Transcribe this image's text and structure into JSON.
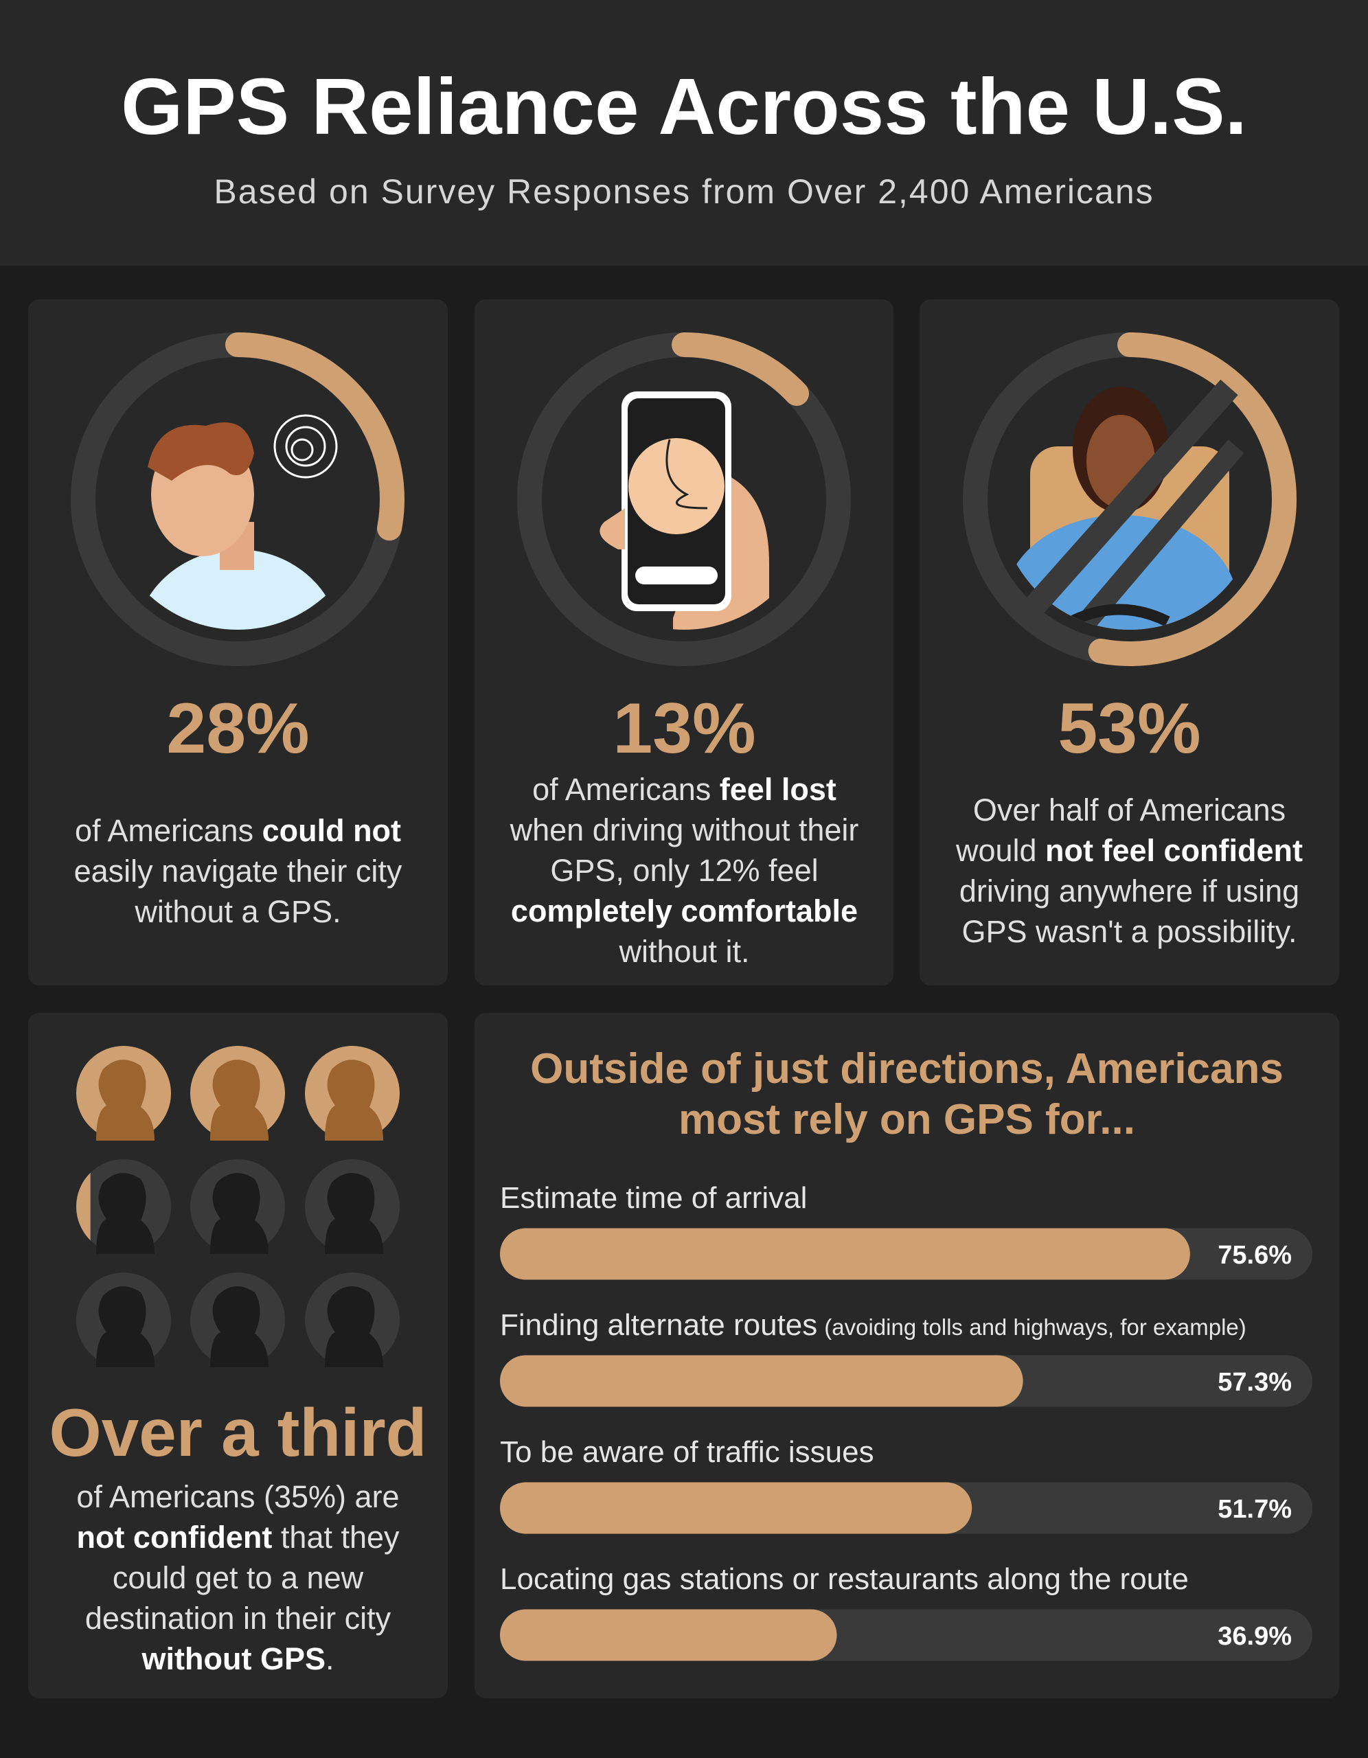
{
  "header": {
    "title": "GPS Reliance Across the U.S.",
    "subtitle": "Based on Survey Responses from Over 2,400 Americans"
  },
  "stats": [
    {
      "value": 28,
      "value_label": "28%",
      "text": [
        {
          "t": "of Americans "
        },
        {
          "t": "could not",
          "bold": true
        },
        {
          "t": " easily navigate their city without a GPS."
        }
      ]
    },
    {
      "value": 13,
      "value_label": "13%",
      "text": [
        {
          "t": "of Americans "
        },
        {
          "t": "feel lost",
          "bold": true
        },
        {
          "t": " when driving without their GPS, only 12% feel "
        },
        {
          "t": "completely comfortable",
          "bold": true
        },
        {
          "t": " without it."
        }
      ]
    },
    {
      "value": 53,
      "value_label": "53%",
      "text": [
        {
          "t": "Over half of Americans would "
        },
        {
          "t": "not feel confident",
          "bold": true
        },
        {
          "t": " driving anywhere if using GPS wasn't a possibility."
        }
      ]
    }
  ],
  "third": {
    "headline": "Over a third",
    "value": 35,
    "text": [
      {
        "t": "of Americans (35%) are "
      },
      {
        "t": "not confident",
        "bold": true
      },
      {
        "t": " that they could get to a new destination in their city "
      },
      {
        "t": "without GPS",
        "bold": true
      },
      {
        "t": "."
      }
    ]
  },
  "chart_data": {
    "type": "bar",
    "orientation": "horizontal",
    "title": "Outside of just directions, Americans most rely on GPS for...",
    "categories": [
      "Estimate time of arrival",
      "Finding alternate routes",
      "To be aware of traffic issues",
      "Locating gas stations or restaurants along the route"
    ],
    "category_notes": [
      null,
      "(avoiding tolls and highways, for example)",
      null,
      null
    ],
    "values": [
      75.6,
      57.3,
      51.7,
      36.9
    ],
    "value_labels": [
      "75.6%",
      "57.3%",
      "51.7%",
      "36.9%"
    ],
    "xlim": [
      0,
      89
    ],
    "color": "#cfa172",
    "track_color": "#3a3a3a"
  }
}
